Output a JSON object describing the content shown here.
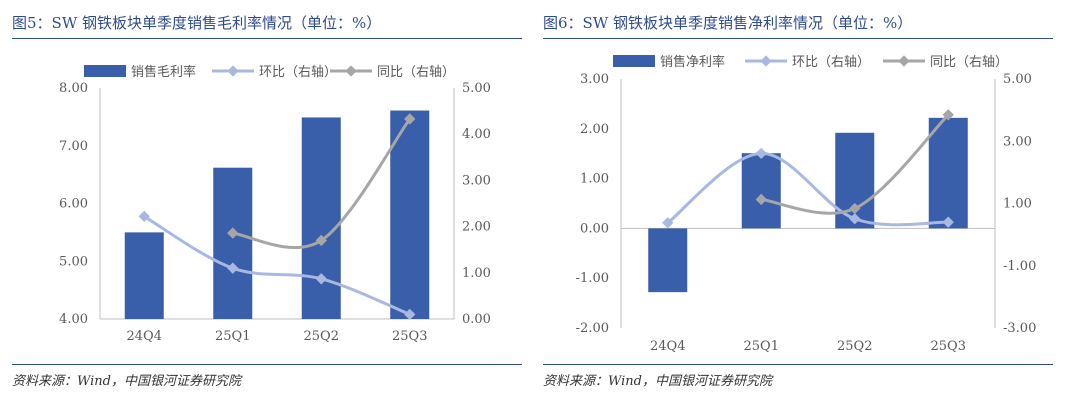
{
  "figures": [
    {
      "title": "图5：SW 钢铁板块单季度销售毛利率情况（单位：%）",
      "source": "资料来源：Wind，中国银河证券研究院",
      "chart_data": {
        "type": "bar",
        "categories": [
          "24Q4",
          "25Q1",
          "25Q2",
          "25Q3"
        ],
        "series": [
          {
            "name": "销售毛利率",
            "type": "bar",
            "axis": "left",
            "color": "#3a5faa",
            "values": [
              5.5,
              6.62,
              7.49,
              7.61
            ]
          },
          {
            "name": "环比（右轴）",
            "type": "line",
            "axis": "right",
            "color": "#a8b8e0",
            "values": [
              2.22,
              1.1,
              0.87,
              0.1
            ]
          },
          {
            "name": "同比（右轴）",
            "type": "line",
            "axis": "right",
            "color": "#a6a6a6",
            "values": [
              null,
              1.86,
              1.7,
              4.33
            ]
          }
        ],
        "y_left": {
          "min": 4.0,
          "max": 8.0,
          "ticks": [
            "4.00",
            "5.00",
            "6.00",
            "7.00",
            "8.00"
          ]
        },
        "y_right": {
          "min": 0.0,
          "max": 5.0,
          "ticks": [
            "0.00",
            "1.00",
            "2.00",
            "3.00",
            "4.00",
            "5.00"
          ]
        },
        "legend_position": "top",
        "grid": false
      }
    },
    {
      "title": "图6：SW 钢铁板块单季度销售净利率情况（单位：%）",
      "source": "资料来源：Wind，中国银河证券研究院",
      "chart_data": {
        "type": "bar",
        "categories": [
          "24Q4",
          "25Q1",
          "25Q2",
          "25Q3"
        ],
        "series": [
          {
            "name": "销售净利率",
            "type": "bar",
            "axis": "left",
            "color": "#3a5faa",
            "values": [
              -1.28,
              1.51,
              1.92,
              2.22
            ]
          },
          {
            "name": "环比（右轴）",
            "type": "line",
            "axis": "right",
            "color": "#a8b8e0",
            "values": [
              0.38,
              2.61,
              0.51,
              0.4
            ]
          },
          {
            "name": "同比（右轴）",
            "type": "line",
            "axis": "right",
            "color": "#a6a6a6",
            "values": [
              null,
              1.13,
              0.84,
              3.85
            ]
          }
        ],
        "y_left": {
          "min": -2.0,
          "max": 3.0,
          "ticks": [
            "-2.00",
            "-1.00",
            "0.00",
            "1.00",
            "2.00",
            "3.00"
          ]
        },
        "y_right": {
          "min": -3.0,
          "max": 5.0,
          "ticks": [
            "-3.00",
            "-1.00",
            "1.00",
            "3.00",
            "5.00"
          ]
        },
        "legend_position": "top",
        "grid": false
      }
    }
  ]
}
